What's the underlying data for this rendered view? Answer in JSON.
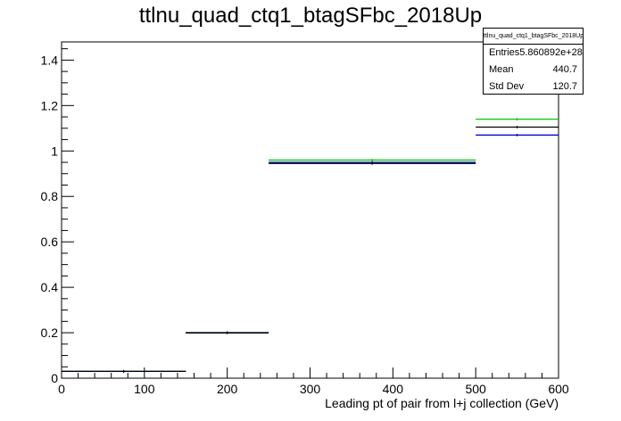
{
  "title": "ttlnu_quad_ctq1_btagSFbc_2018Up",
  "stats": {
    "name": "ttlnu_quad_ctq1_btagSFbc_2018Up",
    "rows": [
      {
        "label": "Entries",
        "value": "5.860892e+28"
      },
      {
        "label": "Mean",
        "value": "440.7"
      },
      {
        "label": "Std Dev",
        "value": "120.7"
      }
    ]
  },
  "chart_data": {
    "type": "histogram",
    "title": "ttlnu_quad_ctq1_btagSFbc_2018Up",
    "xlabel": "Leading pt of pair from l+j collection (GeV)",
    "ylabel": "",
    "xlim": [
      0,
      600
    ],
    "ylim": [
      0,
      1.48
    ],
    "x_ticks": [
      0,
      100,
      200,
      300,
      400,
      500,
      600
    ],
    "y_ticks": [
      0,
      0.2,
      0.4,
      0.6,
      0.8,
      1,
      1.2,
      1.4
    ],
    "x_tick_labels": [
      "0",
      "100",
      "200",
      "300",
      "400",
      "500",
      "600"
    ],
    "y_tick_labels": [
      "0",
      "0.2",
      "0.4",
      "0.6",
      "0.8",
      "1",
      "1.2",
      "1.4"
    ],
    "bins": [
      [
        0,
        150
      ],
      [
        150,
        250
      ],
      [
        250,
        500
      ],
      [
        500,
        600
      ]
    ],
    "series": [
      {
        "color": "#000000",
        "values": [
          0.03,
          0.2,
          0.945,
          1.105
        ]
      },
      {
        "color": "#00cc00",
        "values": [
          0.03,
          0.2,
          0.96,
          1.14
        ]
      },
      {
        "color": "#0000cc",
        "values": [
          0.03,
          0.2,
          0.95,
          1.07
        ]
      }
    ],
    "grid": false,
    "legend": "top-right stats box"
  }
}
